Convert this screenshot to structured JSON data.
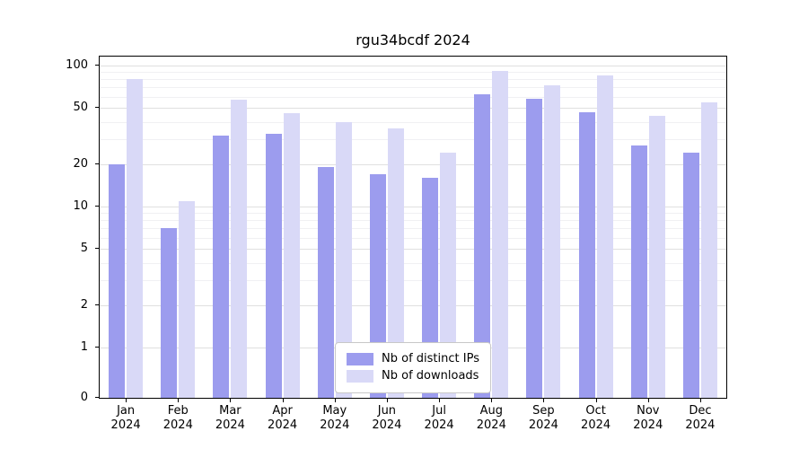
{
  "title": "rgu34bcdf 2024",
  "colors": {
    "bar_distinct_ips": "#9c9cee",
    "bar_downloads": "#d9d9f7",
    "grid_major": "#e0e0e0",
    "grid_minor": "#f0f0f3",
    "axis": "#000000",
    "legend_border": "#c8c8c8"
  },
  "chart_data": {
    "type": "bar",
    "title": "rgu34bcdf 2024",
    "categories": [
      "Jan 2024",
      "Feb 2024",
      "Mar 2024",
      "Apr 2024",
      "May 2024",
      "Jun 2024",
      "Jul 2024",
      "Aug 2024",
      "Sep 2024",
      "Oct 2024",
      "Nov 2024",
      "Dec 2024"
    ],
    "series": [
      {
        "name": "Nb of distinct IPs",
        "color": "#9c9cee",
        "values": [
          20,
          7,
          32,
          33,
          19,
          17,
          16,
          63,
          58,
          47,
          27,
          24
        ]
      },
      {
        "name": "Nb of downloads",
        "color": "#d9d9f7",
        "values": [
          80,
          11,
          57,
          46,
          40,
          36,
          24,
          92,
          72,
          85,
          44,
          55
        ]
      }
    ],
    "xlabel": "",
    "ylabel": "",
    "yscale": "log (symlog, linear below 1)",
    "ylim": [
      0,
      114
    ],
    "y_ticks": [
      0,
      1,
      2,
      5,
      10,
      20,
      50,
      100
    ],
    "y_minor_ticks": [
      3,
      4,
      6,
      7,
      8,
      9,
      30,
      40,
      60,
      70,
      80,
      90
    ],
    "grid": true,
    "legend_position": "lower center"
  }
}
